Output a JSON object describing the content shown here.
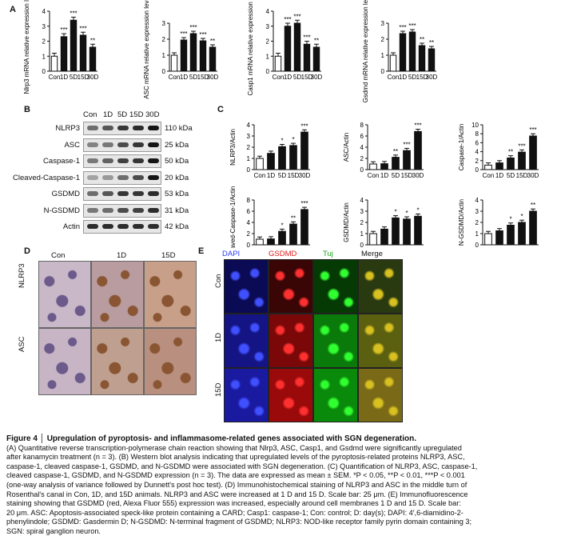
{
  "panels": {
    "a": "A",
    "b": "B",
    "c": "C",
    "d": "D",
    "e": "E"
  },
  "sig": {
    "three": "***",
    "two": "**",
    "one": "*"
  },
  "panelA": {
    "charts": [
      {
        "ylabel": "Nlrp3 mRNA relative expression level",
        "ymax": 4,
        "yticks": [
          "0",
          "1",
          "2",
          "3",
          "4"
        ],
        "categories": [
          "Con",
          "1D",
          "5D",
          "15D",
          "30D"
        ],
        "values": [
          1.0,
          2.3,
          3.4,
          2.4,
          1.6
        ],
        "sig": [
          "",
          "***",
          "***",
          "***",
          "**"
        ]
      },
      {
        "ylabel": "ASC mRNA relative expression level",
        "ymax": 3,
        "yticks": [
          "0",
          "1",
          "2",
          "3"
        ],
        "categories": [
          "Con",
          "1D",
          "5D",
          "15D",
          "30D"
        ],
        "values": [
          1.0,
          1.95,
          2.35,
          1.9,
          1.5
        ],
        "sig": [
          "",
          "***",
          "***",
          "***",
          "**"
        ]
      },
      {
        "ylabel": "Casp1 mRNA relative expression level",
        "ymax": 4,
        "yticks": [
          "0",
          "1",
          "2",
          "3",
          "4"
        ],
        "categories": [
          "Con",
          "1D",
          "5D",
          "15D",
          "30D"
        ],
        "values": [
          1.0,
          3.0,
          3.2,
          1.8,
          1.6
        ],
        "sig": [
          "",
          "***",
          "***",
          "***",
          "**"
        ]
      },
      {
        "ylabel": "Gsdmd mRNA relative expression level",
        "ymax": 3,
        "yticks": [
          "0",
          "1",
          "2",
          "3"
        ],
        "categories": [
          "Con",
          "1D",
          "5D",
          "15D",
          "30D"
        ],
        "values": [
          1.0,
          2.35,
          2.45,
          1.6,
          1.4
        ],
        "sig": [
          "",
          "***",
          "***",
          "**",
          "**"
        ]
      }
    ]
  },
  "panelB": {
    "lanes": [
      "Con",
      "1D",
      "5D",
      "15D",
      "30D"
    ],
    "rows": [
      {
        "label": "NLRP3",
        "kda": "110 kDa"
      },
      {
        "label": "ASC",
        "kda": "25 kDa"
      },
      {
        "label": "Caspase-1",
        "kda": "50 kDa"
      },
      {
        "label": "Cleaved-Caspase-1",
        "kda": "20 kDa"
      },
      {
        "label": "GSDMD",
        "kda": "53 kDa"
      },
      {
        "label": "N-GSDMD",
        "kda": "31 kDa"
      },
      {
        "label": "Actin",
        "kda": "42 kDa"
      }
    ]
  },
  "chart_data": [
    {
      "type": "bar",
      "ylabel": "NLRP3/Actin",
      "categories": [
        "Con",
        "1D",
        "5D",
        "15D",
        "30D"
      ],
      "values": [
        1.0,
        1.45,
        2.05,
        2.15,
        3.35
      ],
      "ylim": [
        0,
        4
      ],
      "yticks": [
        "0",
        "1",
        "2",
        "3",
        "4"
      ],
      "sig": [
        "",
        "",
        "*",
        "*",
        "***"
      ]
    },
    {
      "type": "bar",
      "ylabel": "ASC/Actin",
      "categories": [
        "Con",
        "1D",
        "5D",
        "15D",
        "30D"
      ],
      "values": [
        1.0,
        1.05,
        2.2,
        3.4,
        6.8
      ],
      "ylim": [
        0,
        8
      ],
      "yticks": [
        "0",
        "2",
        "4",
        "6",
        "8"
      ],
      "sig": [
        "",
        "",
        "**",
        "***",
        "***"
      ]
    },
    {
      "type": "bar",
      "ylabel": "Caspase-1/Actin",
      "categories": [
        "Con",
        "1D",
        "5D",
        "15D",
        "30D"
      ],
      "values": [
        1.0,
        1.5,
        2.6,
        3.9,
        7.5
      ],
      "ylim": [
        0,
        10
      ],
      "yticks": [
        "0",
        "2",
        "4",
        "6",
        "8",
        "10"
      ],
      "sig": [
        "",
        "",
        "**",
        "***",
        "***"
      ]
    },
    {
      "type": "bar",
      "ylabel": "Cleaved-Caspase-1/Actin",
      "categories": [
        "Con",
        "1D",
        "5D",
        "15D",
        "30D"
      ],
      "values": [
        1.0,
        1.05,
        2.4,
        3.7,
        6.3
      ],
      "ylim": [
        0,
        8
      ],
      "yticks": [
        "0",
        "2",
        "4",
        "6",
        "8"
      ],
      "sig": [
        "",
        "",
        "*",
        "**",
        "***"
      ]
    },
    {
      "type": "bar",
      "ylabel": "GSDMD/Actin",
      "categories": [
        "Con",
        "1D",
        "5D",
        "15D",
        "30D"
      ],
      "values": [
        1.0,
        1.4,
        2.4,
        2.3,
        2.55
      ],
      "ylim": [
        0,
        4
      ],
      "yticks": [
        "0",
        "1",
        "2",
        "3",
        "4"
      ],
      "sig": [
        "",
        "",
        "*",
        "*",
        "*"
      ]
    },
    {
      "type": "bar",
      "ylabel": "N-GSDMD/Actin",
      "categories": [
        "Con",
        "1D",
        "5D",
        "15D",
        "30D"
      ],
      "values": [
        1.0,
        1.25,
        1.75,
        2.0,
        3.0
      ],
      "ylim": [
        0,
        4
      ],
      "yticks": [
        "0",
        "1",
        "2",
        "3",
        "4"
      ],
      "sig": [
        "",
        "",
        "*",
        "*",
        "**"
      ]
    }
  ],
  "panelD": {
    "cols": [
      "Con",
      "1D",
      "15D"
    ],
    "rows": [
      "NLRP3",
      "ASC"
    ]
  },
  "panelE": {
    "cols": [
      "DAPI",
      "GSDMD",
      "Tuj",
      "Merge"
    ],
    "rows": [
      "Con",
      "1D",
      "15D"
    ],
    "colColors": [
      "#2b3cff",
      "#e01818",
      "#1fa01f",
      "#222222"
    ]
  },
  "caption": {
    "title": "Figure 4 │ Upregulation of pyroptosis- and inflammasome-related genes associated with SGN degeneration.",
    "lines": [
      "(A) Quantitative reverse transcription-polymerase chain reaction showing that Nlrp3, ASC, Casp1, and Gsdmd were significantly upregulated",
      "after kanamycin treatment (n = 3). (B) Western blot analysis indicating that upregulated levels of the pyroptosis-related proteins NLRP3, ASC,",
      "caspase-1, cleaved caspase-1, GSDMD, and N-GSDMD were associated with SGN degeneration. (C) Quantification of NLRP3, ASC, caspase-1,",
      "cleaved caspase-1, GSDMD, and N-GSDMD expression (n = 3). The data are expressed as mean ± SEM. *P < 0.05, **P < 0.01, ***P < 0.001",
      "(one-way analysis of variance followed by Dunnett's post hoc test). (D) Immunohistochemical staining of NLRP3 and ASC in the middle turn of",
      "Rosenthal's canal in Con, 1D, and 15D animals. NLRP3 and ASC were increased at 1 D and 15 D. Scale bar: 25 μm. (E) Immunofluorescence",
      "staining showing that GSDMD (red, Alexa Fluor 555) expression was increased, especially around cell membranes 1 D and 15 D. Scale bar:",
      "20 μm. ASC: Apoptosis-associated speck-like protein containing a CARD; Casp1: caspase-1; Con: control; D: day(s); DAPI: 4′,6-diamidino-2-",
      "phenylindole; GSDMD: Gasdermin D; N-GSDMD: N-terminal fragment of GSDMD; NLRP3: NOD-like receptor family pyrin domain containing 3;",
      "SGN: spiral ganglion neuron."
    ]
  },
  "colors": {
    "bar": "#111111",
    "axis": "#111111"
  }
}
